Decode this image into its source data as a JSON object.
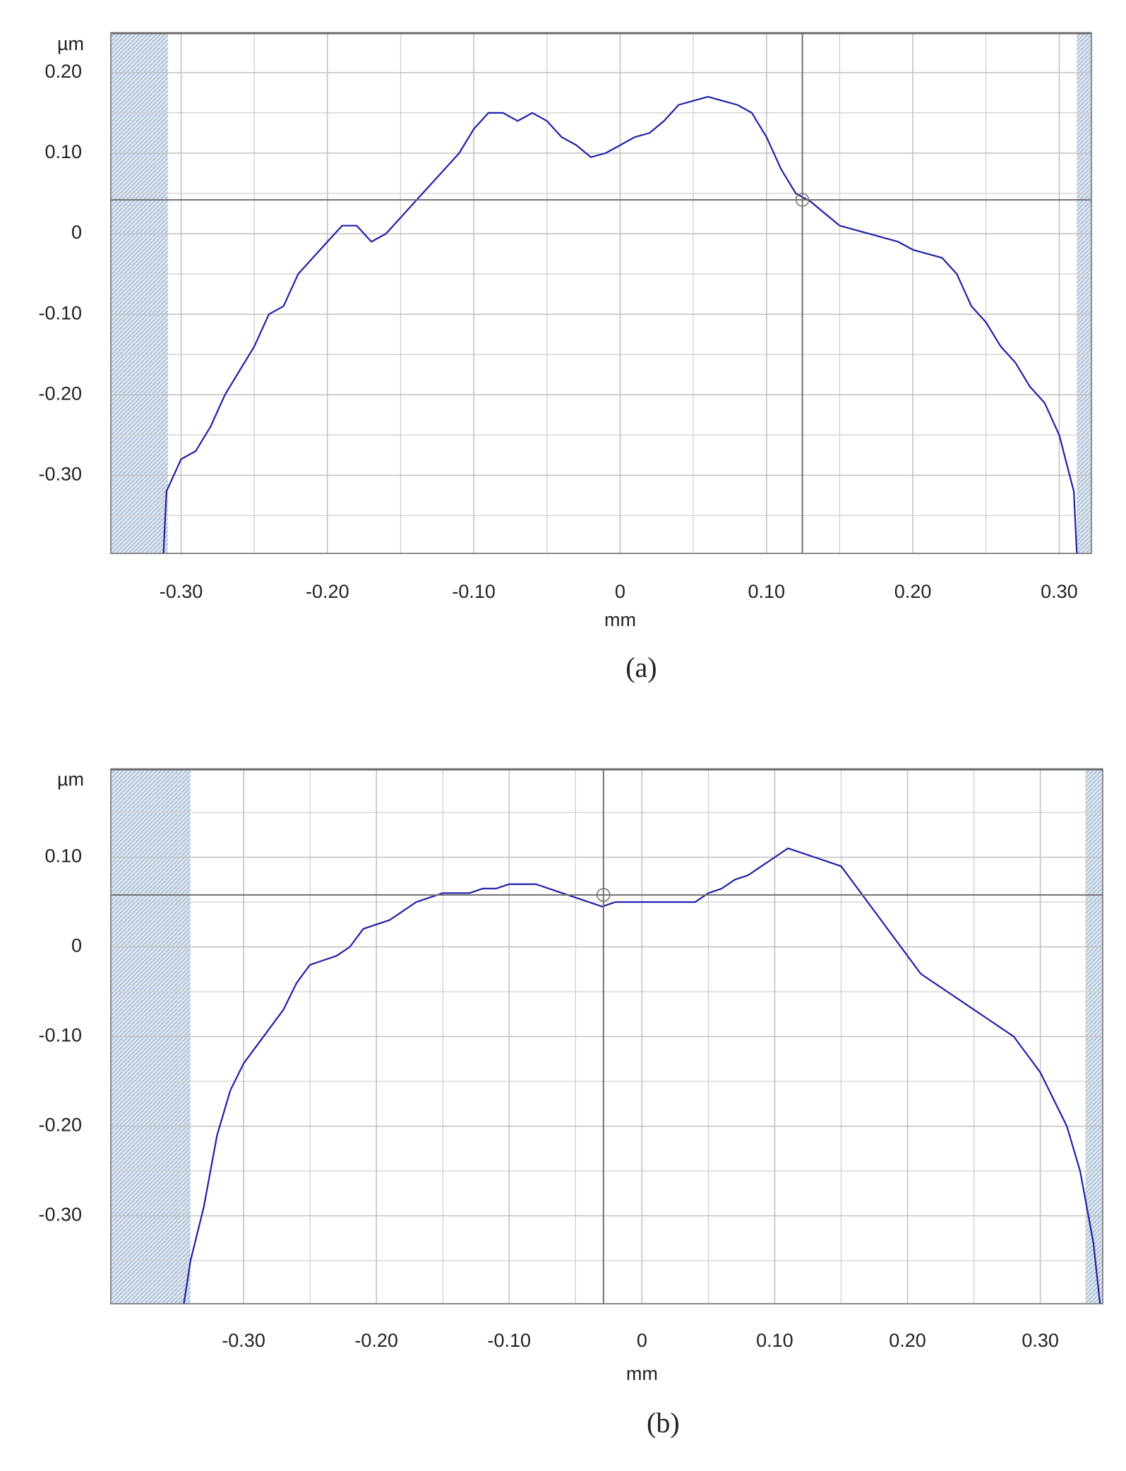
{
  "chart_data": [
    {
      "type": "line",
      "x_label": "mm",
      "y_label": "µm",
      "caption": "(a)",
      "xlim": [
        -0.348,
        0.322
      ],
      "ylim": [
        -0.397,
        0.249
      ],
      "xticks": [
        {
          "value": -0.3,
          "label": "-0.30"
        },
        {
          "value": -0.2,
          "label": "-0.20"
        },
        {
          "value": -0.1,
          "label": "-0.10"
        },
        0,
        {
          "value": 0.1,
          "label": "0.10"
        },
        {
          "value": 0.2,
          "label": "0.20"
        },
        {
          "value": 0.3,
          "label": "0.30"
        }
      ],
      "yticks": [
        {
          "value": 0.2,
          "label": "0.20"
        },
        {
          "value": 0.1,
          "label": "0.10"
        },
        0,
        {
          "value": -0.1,
          "label": "-0.10"
        },
        {
          "value": -0.2,
          "label": "-0.20"
        },
        {
          "value": -0.3,
          "label": "-0.30"
        }
      ],
      "minor_xticks": [
        -0.25,
        -0.15,
        -0.05,
        0.05,
        0.15,
        0.25
      ],
      "minor_yticks": [
        0.15,
        0.05,
        -0.05,
        -0.15,
        -0.25,
        -0.35
      ],
      "grid": true,
      "color": "#1f1fa8",
      "masked_x": [
        [
          -0.348,
          -0.309
        ],
        [
          0.312,
          0.322
        ]
      ],
      "cursor": {
        "x": 0.1245,
        "y": 0.042
      },
      "x": [
        -0.312,
        -0.31,
        -0.3,
        -0.29,
        -0.28,
        -0.27,
        -0.26,
        -0.25,
        -0.24,
        -0.23,
        -0.22,
        -0.21,
        -0.2,
        -0.19,
        -0.18,
        -0.17,
        -0.16,
        -0.15,
        -0.14,
        -0.13,
        -0.12,
        -0.11,
        -0.1,
        -0.09,
        -0.08,
        -0.07,
        -0.06,
        -0.05,
        -0.04,
        -0.03,
        -0.02,
        -0.01,
        0,
        0.01,
        0.02,
        0.03,
        0.04,
        0.05,
        0.06,
        0.07,
        0.08,
        0.09,
        0.1,
        0.11,
        0.12,
        0.13,
        0.14,
        0.15,
        0.16,
        0.17,
        0.18,
        0.19,
        0.2,
        0.21,
        0.22,
        0.23,
        0.24,
        0.25,
        0.26,
        0.27,
        0.28,
        0.29,
        0.3,
        0.31,
        0.312
      ],
      "values": [
        -0.397,
        -0.32,
        -0.28,
        -0.27,
        -0.24,
        -0.2,
        -0.17,
        -0.14,
        -0.1,
        -0.09,
        -0.05,
        -0.03,
        -0.01,
        0.01,
        0.01,
        -0.01,
        0.0,
        0.02,
        0.04,
        0.06,
        0.08,
        0.1,
        0.13,
        0.15,
        0.15,
        0.14,
        0.15,
        0.14,
        0.12,
        0.11,
        0.095,
        0.1,
        0.11,
        0.12,
        0.125,
        0.14,
        0.16,
        0.165,
        0.17,
        0.165,
        0.16,
        0.15,
        0.12,
        0.08,
        0.05,
        0.04,
        0.025,
        0.01,
        0.005,
        0.0,
        -0.005,
        -0.01,
        -0.02,
        -0.025,
        -0.03,
        -0.05,
        -0.09,
        -0.11,
        -0.14,
        -0.16,
        -0.19,
        -0.21,
        -0.25,
        -0.32,
        -0.397
      ]
    },
    {
      "type": "line",
      "x_label": "mm",
      "y_label": "µm",
      "caption": "(b)",
      "xlim": [
        -0.4,
        0.347
      ],
      "ylim": [
        -0.398,
        0.198
      ],
      "xticks": [
        {
          "value": -0.3,
          "label": "-0.30"
        },
        {
          "value": -0.2,
          "label": "-0.20"
        },
        {
          "value": -0.1,
          "label": "-0.10"
        },
        0,
        {
          "value": 0.1,
          "label": "0.10"
        },
        {
          "value": 0.2,
          "label": "0.20"
        },
        {
          "value": 0.3,
          "label": "0.30"
        }
      ],
      "yticks": [
        {
          "value": 0.1,
          "label": "0.10"
        },
        0,
        {
          "value": -0.1,
          "label": "-0.10"
        },
        {
          "value": -0.2,
          "label": "-0.20"
        },
        {
          "value": -0.3,
          "label": "-0.30"
        }
      ],
      "minor_xticks": [
        -0.35,
        -0.25,
        -0.15,
        -0.05,
        0.05,
        0.15,
        0.25
      ],
      "minor_yticks": [
        0.15,
        0.05,
        -0.05,
        -0.15,
        -0.25,
        -0.35
      ],
      "grid": true,
      "color": "#1f1fa8",
      "masked_x": [
        [
          -0.4,
          -0.34
        ],
        [
          0.334,
          0.347
        ]
      ],
      "cursor": {
        "x": -0.029,
        "y": 0.058
      },
      "x": [
        -0.345,
        -0.34,
        -0.33,
        -0.32,
        -0.31,
        -0.3,
        -0.29,
        -0.28,
        -0.27,
        -0.26,
        -0.25,
        -0.24,
        -0.23,
        -0.22,
        -0.21,
        -0.2,
        -0.19,
        -0.18,
        -0.17,
        -0.16,
        -0.15,
        -0.14,
        -0.13,
        -0.12,
        -0.11,
        -0.1,
        -0.09,
        -0.08,
        -0.07,
        -0.06,
        -0.05,
        -0.04,
        -0.03,
        -0.02,
        -0.01,
        0,
        0.01,
        0.02,
        0.03,
        0.04,
        0.05,
        0.06,
        0.07,
        0.08,
        0.09,
        0.1,
        0.11,
        0.12,
        0.13,
        0.14,
        0.15,
        0.16,
        0.17,
        0.18,
        0.19,
        0.2,
        0.21,
        0.22,
        0.23,
        0.24,
        0.25,
        0.26,
        0.27,
        0.28,
        0.29,
        0.3,
        0.31,
        0.32,
        0.33,
        0.34,
        0.345
      ],
      "values": [
        -0.398,
        -0.35,
        -0.29,
        -0.21,
        -0.16,
        -0.13,
        -0.11,
        -0.09,
        -0.07,
        -0.04,
        -0.02,
        -0.015,
        -0.01,
        0.0,
        0.02,
        0.025,
        0.03,
        0.04,
        0.05,
        0.055,
        0.06,
        0.06,
        0.06,
        0.065,
        0.065,
        0.07,
        0.07,
        0.07,
        0.065,
        0.06,
        0.055,
        0.05,
        0.045,
        0.05,
        0.05,
        0.05,
        0.05,
        0.05,
        0.05,
        0.05,
        0.06,
        0.065,
        0.075,
        0.08,
        0.09,
        0.1,
        0.11,
        0.105,
        0.1,
        0.095,
        0.09,
        0.07,
        0.05,
        0.03,
        0.01,
        -0.01,
        -0.03,
        -0.04,
        -0.05,
        -0.06,
        -0.07,
        -0.08,
        -0.09,
        -0.1,
        -0.12,
        -0.14,
        -0.17,
        -0.2,
        -0.25,
        -0.33,
        -0.398
      ]
    }
  ]
}
